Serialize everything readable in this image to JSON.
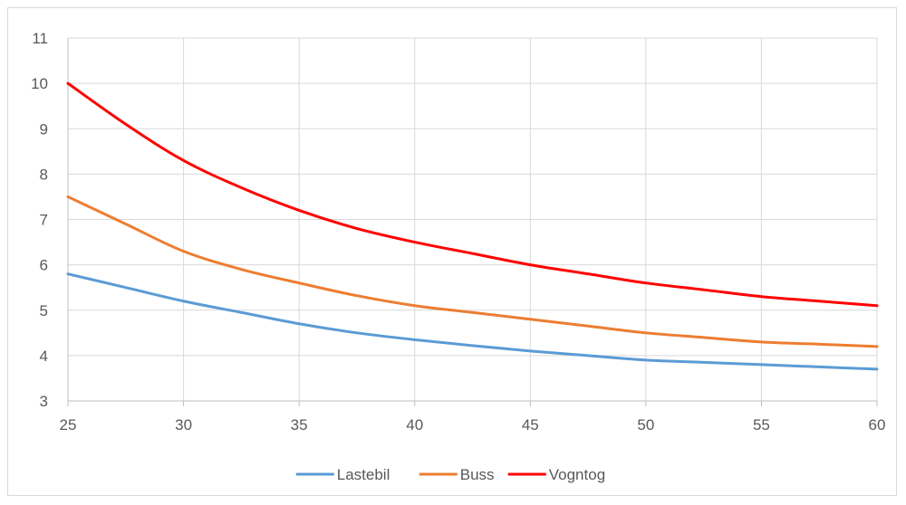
{
  "chart_data": {
    "type": "line",
    "title": "",
    "xlabel": "",
    "ylabel": "",
    "x": [
      25,
      27.5,
      30,
      32.5,
      35,
      37.5,
      40,
      42.5,
      45,
      47.5,
      50,
      52.5,
      55,
      57.5,
      60
    ],
    "xlim": [
      25,
      60
    ],
    "ylim": [
      3,
      11
    ],
    "x_ticks": [
      "25",
      "30",
      "35",
      "40",
      "45",
      "50",
      "55",
      "60"
    ],
    "y_ticks": [
      "3",
      "4",
      "5",
      "6",
      "7",
      "8",
      "9",
      "10",
      "11"
    ],
    "grid": true,
    "legend_position": "bottom",
    "series": [
      {
        "name": "Lastebil",
        "color": "#5b9bd5",
        "values": [
          5.8,
          5.5,
          5.2,
          4.95,
          4.7,
          4.5,
          4.35,
          4.22,
          4.1,
          4.0,
          3.9,
          3.85,
          3.8,
          3.75,
          3.7
        ]
      },
      {
        "name": "Buss",
        "color": "#ed7d31",
        "values": [
          7.5,
          6.9,
          6.3,
          5.9,
          5.6,
          5.32,
          5.1,
          4.95,
          4.8,
          4.65,
          4.5,
          4.4,
          4.3,
          4.25,
          4.2
        ]
      },
      {
        "name": "Vogntog",
        "color": "#ff0000",
        "values": [
          10.0,
          9.1,
          8.3,
          7.7,
          7.2,
          6.8,
          6.5,
          6.25,
          6.0,
          5.8,
          5.6,
          5.45,
          5.3,
          5.2,
          5.1
        ]
      }
    ]
  }
}
